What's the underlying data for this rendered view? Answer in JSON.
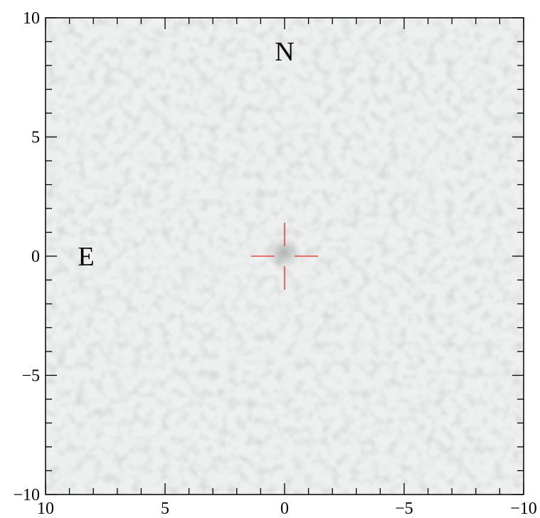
{
  "chart_data": {
    "type": "heatmap",
    "title": "",
    "xlabel": "",
    "ylabel": "",
    "xlim": [
      10,
      -10
    ],
    "ylim": [
      -10,
      10
    ],
    "x_ticks": [
      10,
      5,
      0,
      -5,
      -10
    ],
    "y_ticks": [
      10,
      5,
      0,
      -5,
      -10
    ],
    "x_tick_labels": [
      "10",
      "5",
      "0",
      "−5",
      "−10"
    ],
    "y_tick_labels": [
      "10",
      "5",
      "0",
      "−5",
      "−10"
    ],
    "minor_tick_step": 1,
    "grid": false,
    "annotations": [
      {
        "text": "N",
        "x": 0,
        "y": 8.6
      },
      {
        "text": "E",
        "x": 8.3,
        "y": 0
      }
    ],
    "marker": {
      "type": "crosshair",
      "x": 0,
      "y": 0,
      "color": "#e8473f"
    },
    "background_color": "#eef0ef"
  }
}
